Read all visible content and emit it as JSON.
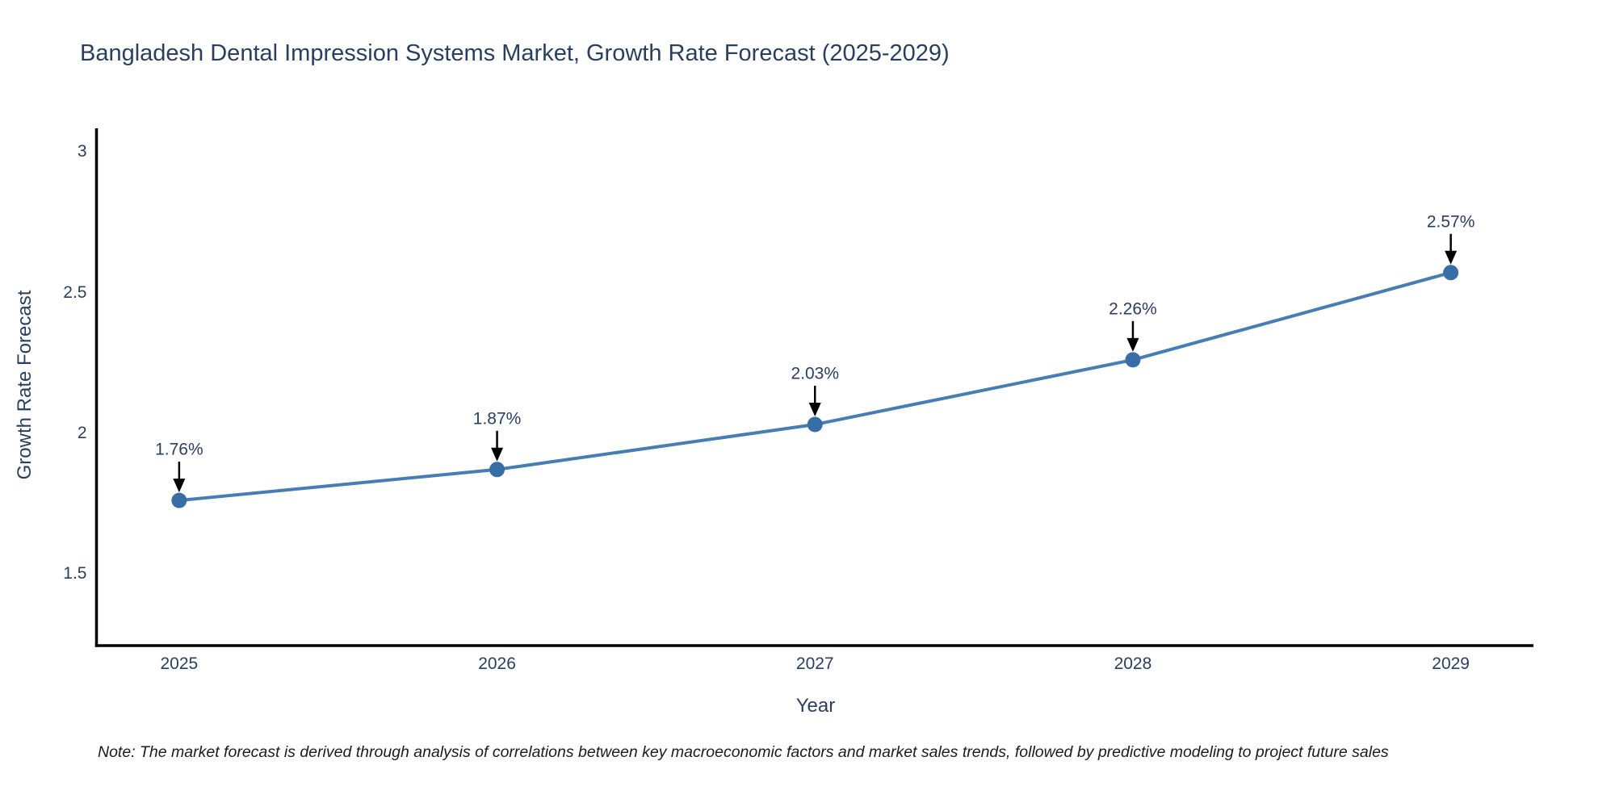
{
  "chart_data": {
    "type": "line",
    "title": "Bangladesh Dental Impression Systems Market, Growth Rate Forecast (2025-2029)",
    "xlabel": "Year",
    "ylabel": "Growth Rate Forecast",
    "x": [
      2025,
      2026,
      2027,
      2028,
      2029
    ],
    "series": [
      {
        "name": "Growth Rate Forecast",
        "values": [
          1.76,
          1.87,
          2.03,
          2.26,
          2.57
        ]
      }
    ],
    "point_labels": [
      "1.76%",
      "1.87%",
      "2.03%",
      "2.26%",
      "2.57%"
    ],
    "x_tick_labels": [
      "2025",
      "2026",
      "2027",
      "2028",
      "2029"
    ],
    "y_ticks": [
      1.5,
      2,
      2.5,
      3
    ],
    "y_tick_labels": [
      "1.5",
      "2",
      "2.5",
      "3"
    ],
    "xlim": [
      2024.74,
      2029.26
    ],
    "ylim": [
      1.244,
      3.083
    ],
    "grid": false,
    "legend": false,
    "line_color": "#467db4",
    "marker_color": "#376ea5",
    "axis_color": "#000000",
    "text_color": "#2a3f5f",
    "annotation_arrow_color": "#000000"
  },
  "footnote": "Note: The market forecast is derived through analysis of correlations between key macroeconomic factors and market sales trends, followed by predictive modeling to project future sales"
}
